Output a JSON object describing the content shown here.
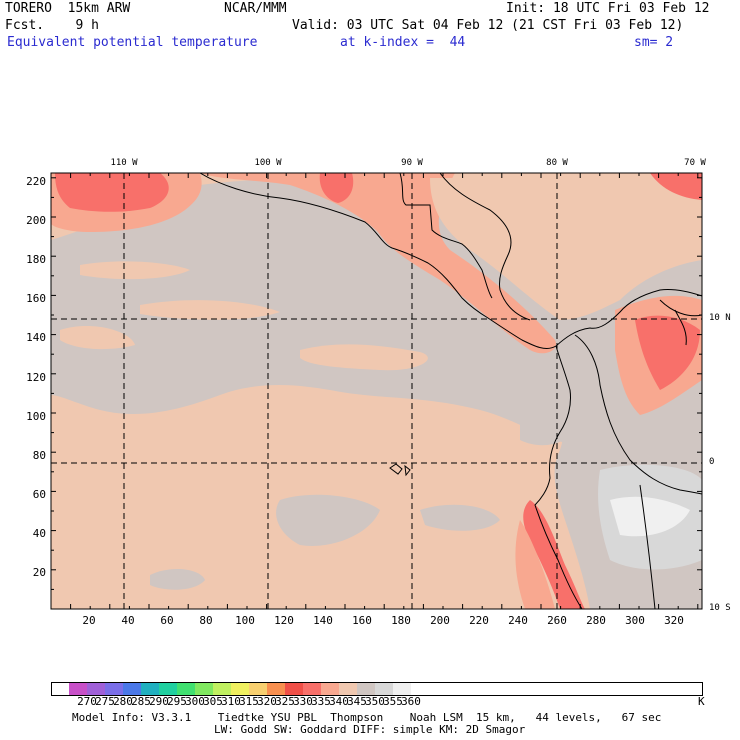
{
  "header": {
    "model": "TORERO  15km ARW",
    "org": "NCAR/MMM",
    "init": "Init: 18 UTC Fri 03 Feb 12",
    "fcst": "Fcst.    9 h",
    "valid": "Valid: 03 UTC Sat 04 Feb 12 (21 CST Fri 03 Feb 12)",
    "field": "Equivalent potential temperature",
    "kindex": "at k-index =  44",
    "smooth": "sm= 2"
  },
  "map": {
    "y_grid_labels": [
      "220",
      "200",
      "180",
      "160",
      "140",
      "120",
      "100",
      "80",
      "60",
      "40",
      "20"
    ],
    "x_grid_labels": [
      "20",
      "40",
      "60",
      "80",
      "100",
      "120",
      "140",
      "160",
      "180",
      "200",
      "220",
      "240",
      "260",
      "280",
      "300",
      "320"
    ],
    "longitude_labels": [
      "110 W",
      "100 W",
      "90 W",
      "80 W",
      "70 W"
    ],
    "latitude_labels": [
      "10 N",
      "0",
      "10 S"
    ]
  },
  "colorbar": {
    "unit": "K",
    "labels": [
      "270",
      "275",
      "280",
      "285",
      "290",
      "295",
      "300",
      "305",
      "310",
      "315",
      "320",
      "325",
      "330",
      "335",
      "340",
      "345",
      "350",
      "355",
      "360"
    ],
    "colors": [
      "#c850c8",
      "#a060d8",
      "#7a6ee8",
      "#4a78e8",
      "#20b0c0",
      "#20d0a0",
      "#40e070",
      "#80e860",
      "#c0f060",
      "#f0f060",
      "#f8d070",
      "#f89050",
      "#f05048",
      "#f8706a",
      "#f8a890",
      "#f0c8b0",
      "#d0c6c2",
      "#d8d8d8",
      "#f0f0f0"
    ]
  },
  "footer": {
    "line1": "Model Info: V3.3.1    Tiedtke YSU PBL  Thompson    Noah LSM  15 km,   44 levels,   67 sec",
    "line2": "LW: Godd SW: Goddard DIFF: simple KM: 2D Smagor"
  }
}
